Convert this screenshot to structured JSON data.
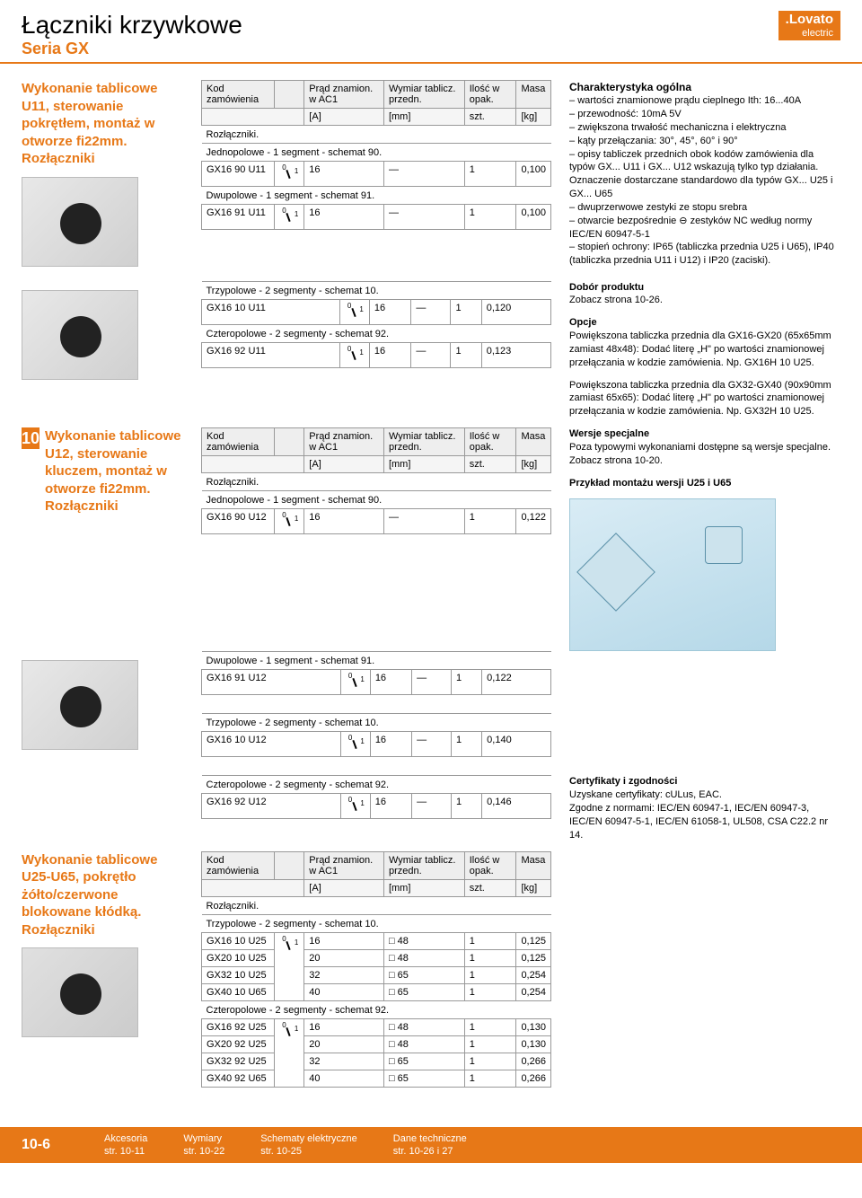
{
  "brand": {
    "main": ".Lovato",
    "sub": "electric"
  },
  "page": {
    "title": "Łączniki krzywkowe",
    "subtitle": "Seria GX",
    "tab_number": "10"
  },
  "headings": {
    "u11": "Wykonanie tablicowe U11, sterowanie pokrętłem, montaż w otworze fi22mm. Rozłączniki",
    "u12": "Wykonanie tablicowe U12, sterowanie kluczem, montaż w otworze fi22mm. Rozłączniki",
    "u25": "Wykonanie tablicowe U25-U65, pokrętło żółto/czerwone blokowane kłódką. Rozłączniki"
  },
  "tableHeaders": {
    "code": "Kod zamówienia",
    "current": "Prąd znamion. w AC1",
    "dim": "Wymiar tablicz. przedn.",
    "qty": "Ilość w opak.",
    "mass": "Masa",
    "unit_a": "[A]",
    "unit_mm": "[mm]",
    "unit_szt": "szt.",
    "unit_kg": "[kg]"
  },
  "captions": {
    "rozl": "Rozłączniki.",
    "j1_90": "Jednopolowe - 1 segment - schemat 90.",
    "d1_91": "Dwupolowe - 1 segment - schemat 91.",
    "t2_10": "Trzypolowe - 2 segmenty - schemat 10.",
    "c2_92": "Czteropolowe - 2 segmenty - schemat 92."
  },
  "tables": {
    "u11_90": {
      "code": "GX16 90 U11",
      "a": "16",
      "mm": "—",
      "qty": "1",
      "kg": "0,100"
    },
    "u11_91": {
      "code": "GX16 91 U11",
      "a": "16",
      "mm": "—",
      "qty": "1",
      "kg": "0,100"
    },
    "u11_10": {
      "code": "GX16 10 U11",
      "a": "16",
      "mm": "—",
      "qty": "1",
      "kg": "0,120"
    },
    "u11_92": {
      "code": "GX16 92 U11",
      "a": "16",
      "mm": "—",
      "qty": "1",
      "kg": "0,123"
    },
    "u12_90": {
      "code": "GX16 90 U12",
      "a": "16",
      "mm": "—",
      "qty": "1",
      "kg": "0,122"
    },
    "u12_91": {
      "code": "GX16 91 U12",
      "a": "16",
      "mm": "—",
      "qty": "1",
      "kg": "0,122"
    },
    "u12_10": {
      "code": "GX16 10 U12",
      "a": "16",
      "mm": "—",
      "qty": "1",
      "kg": "0,140"
    },
    "u12_92": {
      "code": "GX16 92 U12",
      "a": "16",
      "mm": "—",
      "qty": "1",
      "kg": "0,146"
    },
    "u25_t": [
      {
        "code": "GX16 10 U25",
        "a": "16",
        "mm": "□ 48",
        "qty": "1",
        "kg": "0,125"
      },
      {
        "code": "GX20 10 U25",
        "a": "20",
        "mm": "□ 48",
        "qty": "1",
        "kg": "0,125"
      },
      {
        "code": "GX32 10 U25",
        "a": "32",
        "mm": "□ 65",
        "qty": "1",
        "kg": "0,254"
      },
      {
        "code": "GX40 10 U65",
        "a": "40",
        "mm": "□ 65",
        "qty": "1",
        "kg": "0,254"
      }
    ],
    "u25_c": [
      {
        "code": "GX16 92 U25",
        "a": "16",
        "mm": "□ 48",
        "qty": "1",
        "kg": "0,130"
      },
      {
        "code": "GX20 92 U25",
        "a": "20",
        "mm": "□ 48",
        "qty": "1",
        "kg": "0,130"
      },
      {
        "code": "GX32 92 U25",
        "a": "32",
        "mm": "□ 65",
        "qty": "1",
        "kg": "0,266"
      },
      {
        "code": "GX40 92 U65",
        "a": "40",
        "mm": "□ 65",
        "qty": "1",
        "kg": "0,266"
      }
    ]
  },
  "char": {
    "title": "Charakterystyka ogólna",
    "items": [
      "wartości znamionowe prądu cieplnego Ith: 16...40A",
      "przewodność: 10mA 5V",
      "zwiększona trwałość mechaniczna i elektryczna",
      "kąty przełączania: 30°, 45°, 60° i 90°",
      "opisy tabliczek przednich obok kodów zamówienia dla typów GX... U11 i GX... U12 wskazują tylko typ działania. Oznaczenie dostarczane standardowo dla typów GX... U25 i GX... U65",
      "dwuprzerwowe zestyki ze stopu srebra",
      "otwarcie bezpośrednie ⊖ zestyków NC według normy IEC/EN 60947-5-1",
      "stopień ochrony: IP65 (tabliczka przednia U25 i U65), IP40 (tabliczka przednia U11 i U12) i IP20 (zaciski)."
    ]
  },
  "dobor": {
    "title": "Dobór produktu",
    "text": "Zobacz strona 10-26."
  },
  "opcje": {
    "title": "Opcje",
    "p1": "Powiększona tabliczka przednia dla GX16-GX20 (65x65mm zamiast 48x48): Dodać literę „H\" po wartości znamionowej przełączania w kodzie zamówienia. Np. GX16H 10 U25.",
    "p2": "Powiększona tabliczka przednia dla GX32-GX40 (90x90mm zamiast 65x65): Dodać literę „H\" po wartości znamionowej przełączania w kodzie zamówienia. Np. GX32H 10 U25."
  },
  "wersje": {
    "title": "Wersje specjalne",
    "text": "Poza typowymi wykonaniami dostępne są wersje specjalne. Zobacz strona 10-20."
  },
  "przyklad": {
    "title": "Przykład montażu wersji U25 i U65"
  },
  "cert": {
    "title": "Certyfikaty i zgodności",
    "l1": "Uzyskane certyfikaty: cULus, EAC.",
    "l2": "Zgodne z normami: IEC/EN 60947-1, IEC/EN 60947-3, IEC/EN 60947-5-1, IEC/EN 61058-1, UL508, CSA C22.2 nr 14."
  },
  "footer": {
    "page": "10-6",
    "c1t": "Akcesoria",
    "c1s": "str. 10-11",
    "c2t": "Wymiary",
    "c2s": "str. 10-22",
    "c3t": "Schematy elektryczne",
    "c3s": "str. 10-25",
    "c4t": "Dane techniczne",
    "c4s": "str. 10-26 i 27"
  }
}
